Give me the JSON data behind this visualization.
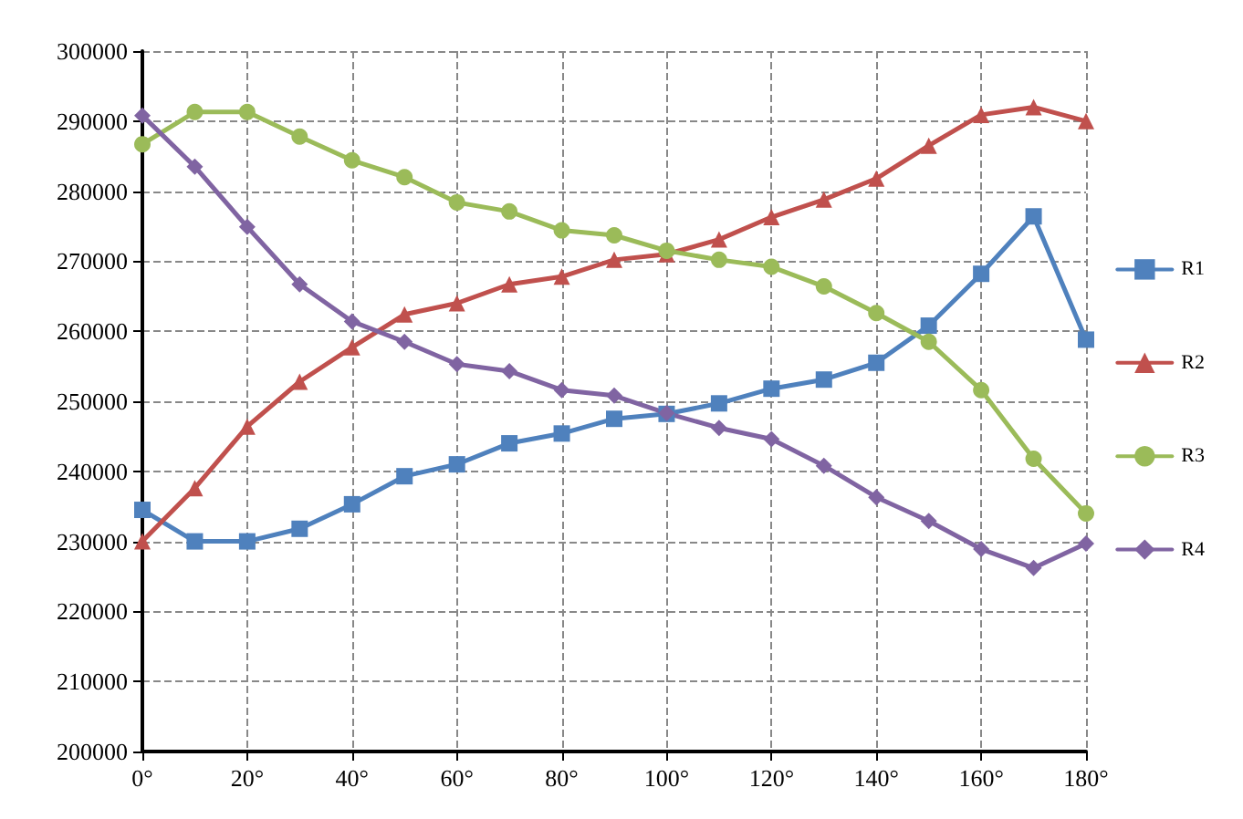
{
  "chart_data": {
    "type": "line",
    "x": [
      0,
      10,
      20,
      30,
      40,
      50,
      60,
      70,
      80,
      90,
      100,
      110,
      120,
      130,
      140,
      150,
      160,
      170,
      180
    ],
    "xlim": [
      0,
      180
    ],
    "xticks": [
      {
        "value": 0,
        "label": "0°"
      },
      {
        "value": 20,
        "label": "20°"
      },
      {
        "value": 40,
        "label": "40°"
      },
      {
        "value": 60,
        "label": "60°"
      },
      {
        "value": 80,
        "label": "80°"
      },
      {
        "value": 100,
        "label": "100°"
      },
      {
        "value": 120,
        "label": "120°"
      },
      {
        "value": 140,
        "label": "140°"
      },
      {
        "value": 160,
        "label": "160°"
      },
      {
        "value": 180,
        "label": "180°"
      }
    ],
    "ylim": [
      200000,
      300000
    ],
    "yticks": [
      200000,
      210000,
      220000,
      230000,
      240000,
      250000,
      260000,
      270000,
      280000,
      290000,
      300000
    ],
    "grid": true,
    "legend": "right",
    "line_style": "solid",
    "series": [
      {
        "name": "R1",
        "color": "#4f81bd",
        "marker": "square",
        "values": [
          234500,
          230000,
          230000,
          231800,
          235300,
          239300,
          241000,
          244000,
          245400,
          247500,
          248200,
          249700,
          251800,
          253100,
          255500,
          260800,
          268200,
          276400,
          258800
        ]
      },
      {
        "name": "R2",
        "color": "#c0504d",
        "marker": "triangle",
        "values": [
          230000,
          237600,
          246400,
          252800,
          257700,
          262400,
          264000,
          266700,
          267800,
          270200,
          271000,
          273100,
          276300,
          278800,
          281800,
          286500,
          290900,
          292000,
          290000
        ]
      },
      {
        "name": "R3",
        "color": "#9bbb59",
        "marker": "circle",
        "values": [
          286700,
          291300,
          291300,
          287800,
          284400,
          282000,
          278400,
          277100,
          274400,
          273700,
          271500,
          270200,
          269200,
          266400,
          262600,
          258500,
          251600,
          241800,
          234000
        ]
      },
      {
        "name": "R4",
        "color": "#8064a2",
        "marker": "diamond",
        "values": [
          290800,
          283500,
          274900,
          266700,
          261400,
          258500,
          255300,
          254300,
          251600,
          250800,
          248300,
          246200,
          244600,
          240800,
          236300,
          232900,
          228900,
          226200,
          229700
        ]
      }
    ]
  }
}
